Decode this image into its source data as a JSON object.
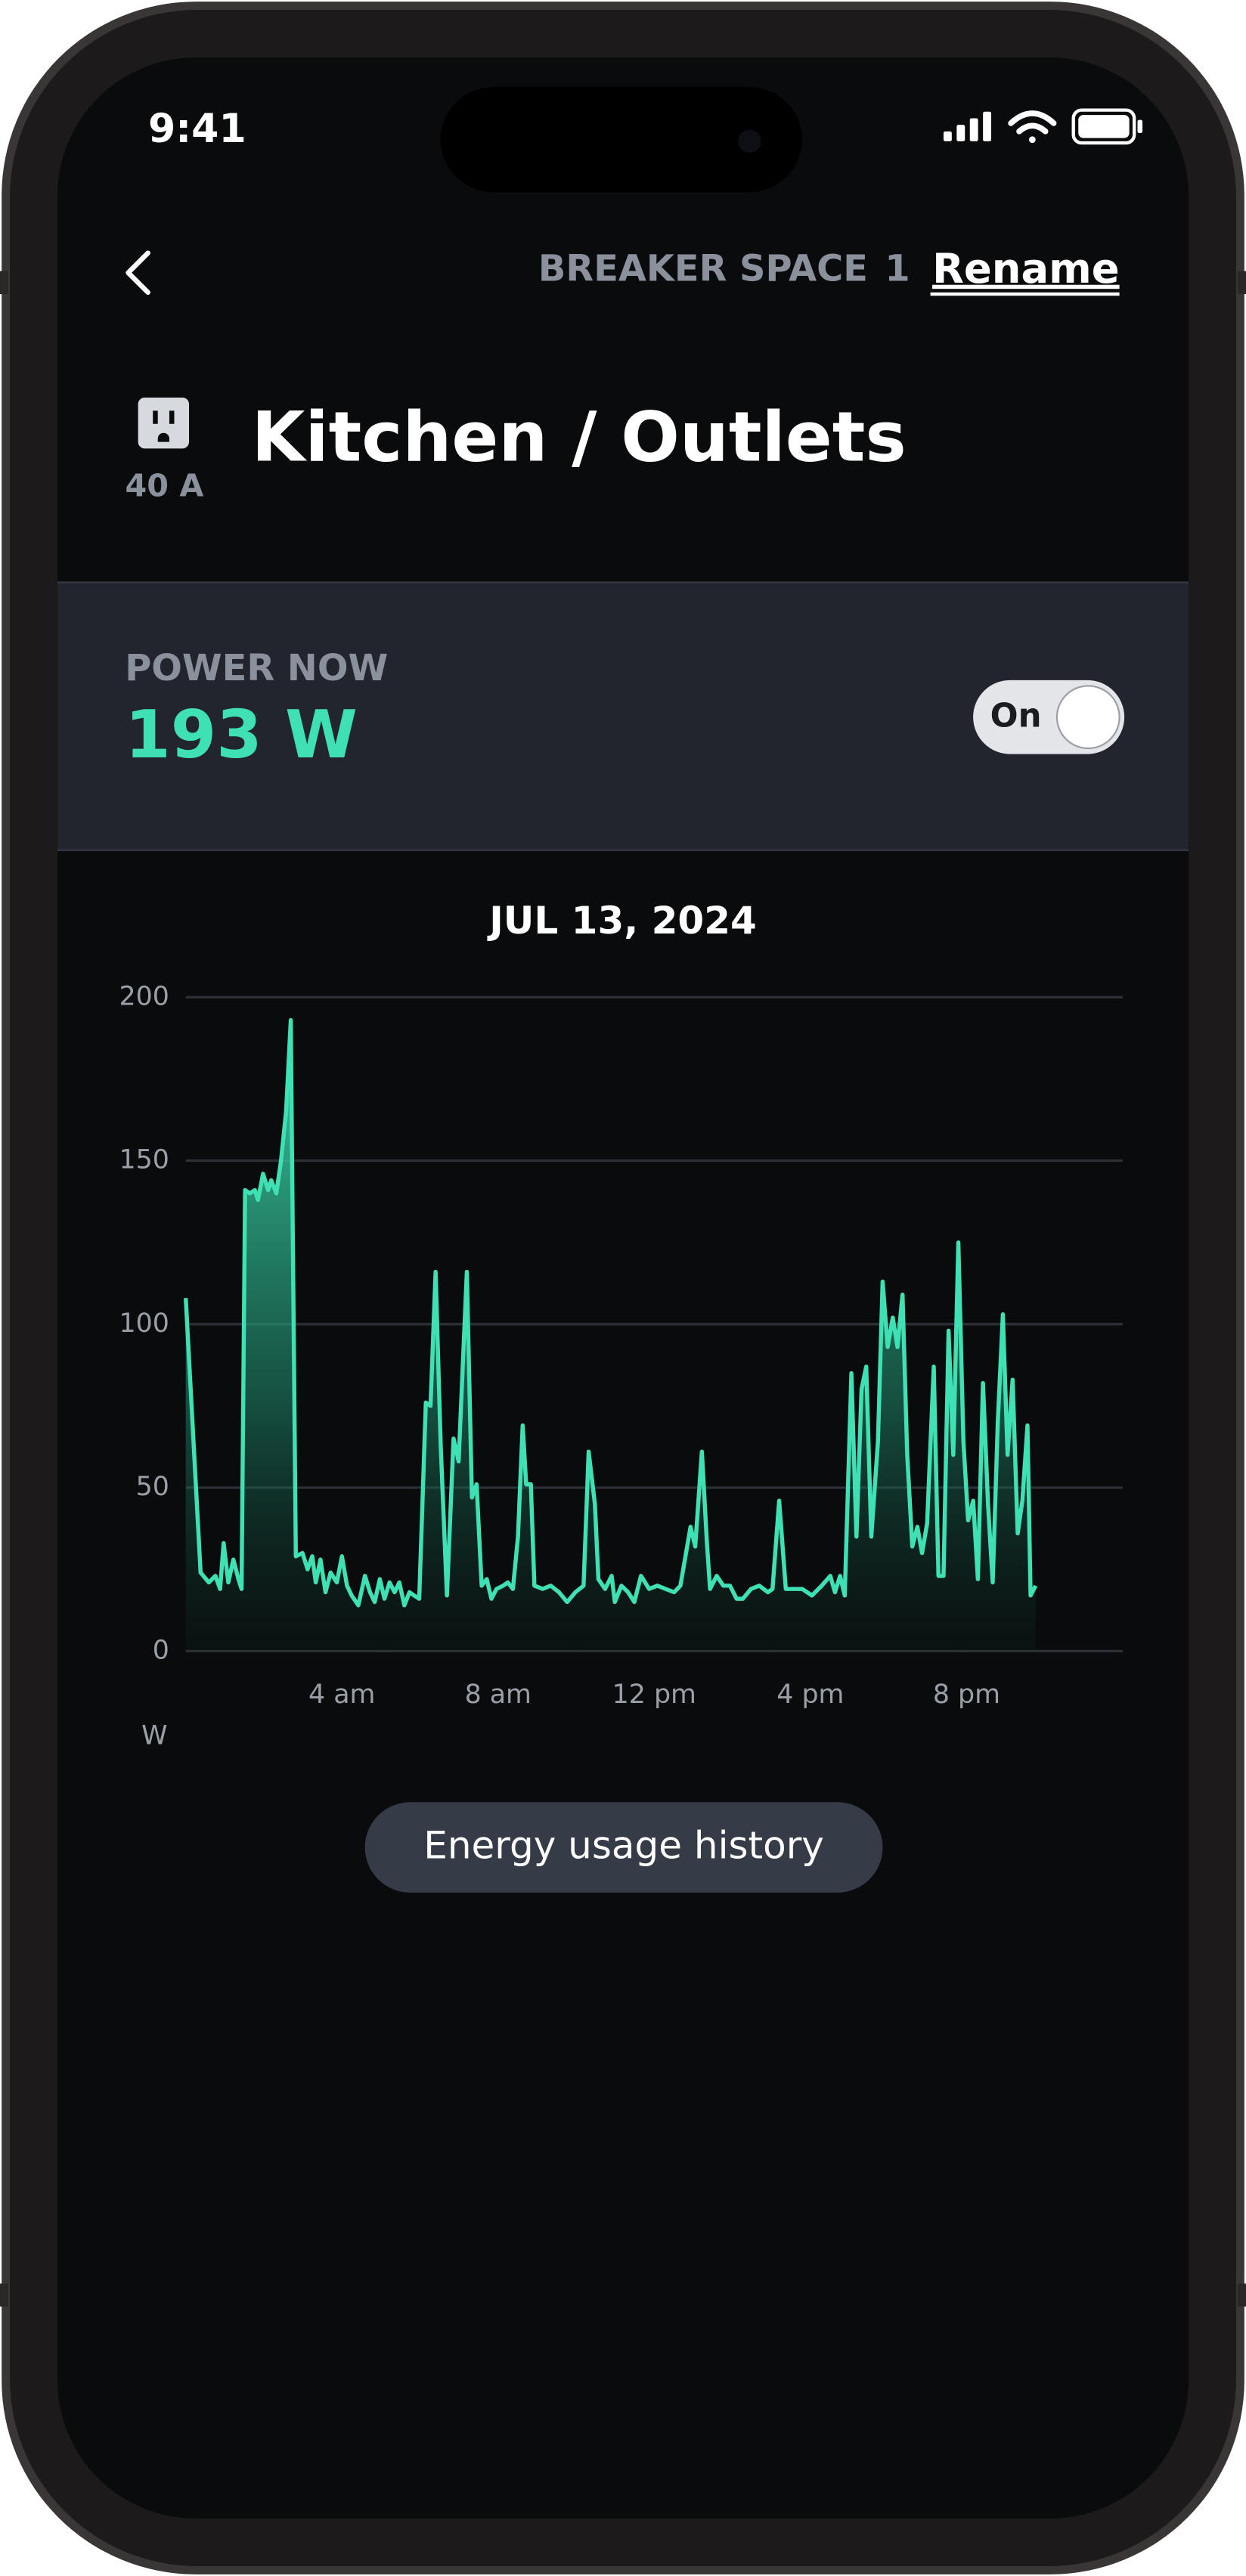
{
  "status_bar": {
    "time": "9:41"
  },
  "header": {
    "breaker_label": "BREAKER SPACE",
    "breaker_number": "1",
    "rename": "Rename",
    "title": "Kitchen / Outlets",
    "amperage": "40 A"
  },
  "power": {
    "label": "POWER NOW",
    "value": "193 W",
    "toggle": "On"
  },
  "chart_data": {
    "type": "line",
    "title": "JUL 13, 2024",
    "y_label": "W",
    "color": "#3fe0b3",
    "x": [
      0,
      0.38,
      0.59,
      0.76,
      0.88,
      0.97,
      1.09,
      1.22,
      1.35,
      1.43,
      1.52,
      1.64,
      1.77,
      1.85,
      1.98,
      2.11,
      2.19,
      2.32,
      2.44,
      2.57,
      2.69,
      2.82,
      2.99,
      3.12,
      3.24,
      3.33,
      3.45,
      3.58,
      3.71,
      3.87,
      4.0,
      4.13,
      4.25,
      4.42,
      4.59,
      4.72,
      4.84,
      4.97,
      5.09,
      5.22,
      5.35,
      5.47,
      5.6,
      5.73,
      5.85,
      5.98,
      6.15,
      6.27,
      6.4,
      6.53,
      6.69,
      6.86,
      6.99,
      7.2,
      7.33,
      7.45,
      7.58,
      7.71,
      7.83,
      7.96,
      8.13,
      8.25,
      8.38,
      8.51,
      8.63,
      8.72,
      8.84,
      8.93,
      9.14,
      9.35,
      9.56,
      9.77,
      9.98,
      10.19,
      10.32,
      10.48,
      10.57,
      10.74,
      10.91,
      10.99,
      11.16,
      11.33,
      11.49,
      11.66,
      11.87,
      12.08,
      12.29,
      12.51,
      12.67,
      12.93,
      13.05,
      13.22,
      13.35,
      13.43,
      13.6,
      13.77,
      13.94,
      14.11,
      14.27,
      14.48,
      14.69,
      14.91,
      15.03,
      15.2,
      15.37,
      15.58,
      15.79,
      16.04,
      16.29,
      16.51,
      16.63,
      16.76,
      16.88,
      17.05,
      17.18,
      17.31,
      17.43,
      17.56,
      17.73,
      17.85,
      17.98,
      18.11,
      18.23,
      18.36,
      18.48,
      18.61,
      18.74,
      18.86,
      18.99,
      19.16,
      19.28,
      19.41,
      19.54,
      19.66,
      19.79,
      19.92,
      20.04,
      20.17,
      20.29,
      20.42,
      20.55,
      20.67,
      20.8,
      20.93,
      21.05,
      21.18,
      21.31,
      21.43,
      21.56,
      21.64,
      21.77
    ],
    "values": [
      108,
      24,
      21,
      23,
      19,
      33,
      21,
      28,
      22,
      19,
      141,
      140,
      141,
      138,
      146,
      141,
      144,
      140,
      150,
      165,
      193,
      29,
      30,
      25,
      29,
      21,
      28,
      18,
      24,
      21,
      29,
      20,
      17,
      14,
      23,
      18,
      15,
      22,
      16,
      21,
      18,
      21,
      14,
      18,
      17,
      16,
      76,
      75,
      116,
      63,
      17,
      65,
      58,
      116,
      47,
      51,
      20,
      22,
      16,
      19,
      20,
      21,
      19,
      35,
      69,
      51,
      51,
      20,
      19,
      20,
      18,
      15,
      18,
      20,
      61,
      45,
      22,
      19,
      23,
      15,
      20,
      18,
      15,
      23,
      19,
      20,
      19,
      18,
      20,
      38,
      32,
      61,
      33,
      19,
      23,
      20,
      20,
      16,
      16,
      19,
      20,
      18,
      19,
      46,
      19,
      19,
      19,
      17,
      20,
      23,
      18,
      23,
      17,
      85,
      35,
      80,
      87,
      35,
      64,
      113,
      93,
      102,
      93,
      109,
      60,
      32,
      38,
      30,
      39,
      87,
      23,
      23,
      98,
      60,
      125,
      64,
      40,
      46,
      22,
      82,
      45,
      21,
      70,
      103,
      60,
      83,
      36,
      46,
      69,
      17,
      20
    ],
    "xlim": [
      0,
      24
    ],
    "xticks": [
      {
        "value": 4,
        "label": "4 am"
      },
      {
        "value": 8,
        "label": "8 am"
      },
      {
        "value": 12,
        "label": "12 pm"
      },
      {
        "value": 16,
        "label": "4 pm"
      },
      {
        "value": 20,
        "label": "8 pm"
      }
    ],
    "ylim": [
      0,
      200
    ],
    "yticks": [
      0,
      50,
      100,
      150,
      200
    ],
    "grid": true
  },
  "actions": {
    "history_button": "Energy usage history"
  }
}
